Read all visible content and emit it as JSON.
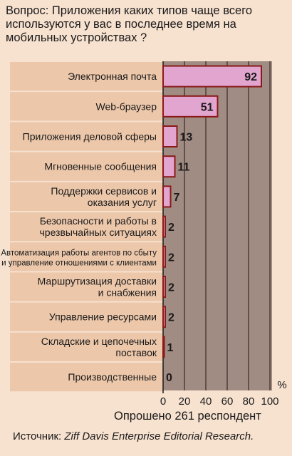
{
  "question": "Вопрос: Приложения каких типов чаще всего используются у вас в последнее время на мобильных устройствах ?",
  "respondents": "Опрошено 261 респондент",
  "source": {
    "prefix": "Источник: ",
    "name": "Ziff Davis Enterprise Editorial Research."
  },
  "colors": {
    "page_bg": "#f7e1cf",
    "plot_bg": "#a08c82",
    "bar_fill": "#e2a5cf",
    "bar_stroke": "#8a1a1a",
    "row_band": "#ecc7aa"
  },
  "chart_data": {
    "type": "bar",
    "orientation": "horizontal",
    "categories": [
      [
        "Электронная почта"
      ],
      [
        "Web-браузер"
      ],
      [
        "Приложения деловой сферы"
      ],
      [
        "Мгновенные сообщения"
      ],
      [
        "Поддержки сервисов и",
        "оказания услуг"
      ],
      [
        "Безопасности и работы в",
        "чрезвычайных ситуациях"
      ],
      [
        "Автоматизация работы агентов по сбыту",
        "и управление отношениями с клиентами"
      ],
      [
        "Маршрутизация доставки",
        "и снабжения"
      ],
      [
        "Управление ресурсами"
      ],
      [
        "Складские и цепочечных",
        "поставок"
      ],
      [
        "Производственные"
      ]
    ],
    "values": [
      92,
      51,
      13,
      11,
      7,
      2,
      2,
      2,
      2,
      1,
      0
    ],
    "xlim": [
      0,
      100
    ],
    "xticks": [
      0,
      20,
      40,
      60,
      80,
      100
    ],
    "xlabel": "%",
    "grid": true
  }
}
